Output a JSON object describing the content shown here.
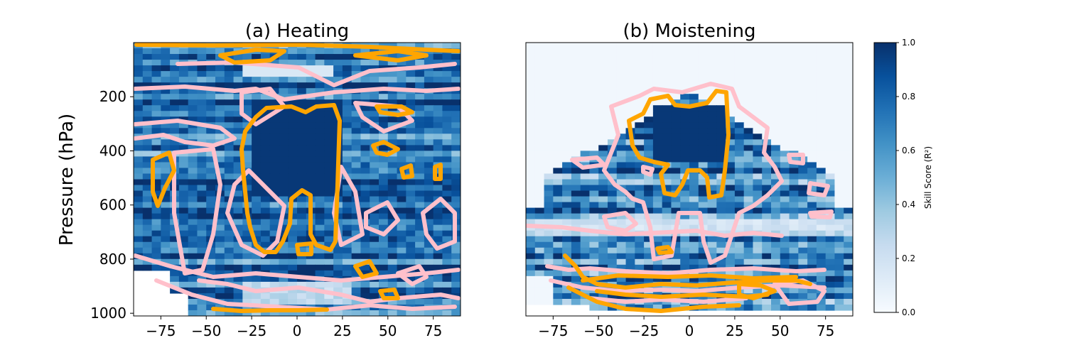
{
  "chart_data": [
    {
      "type": "heatmap",
      "title": "(a) Heating",
      "xlabel": "",
      "ylabel": "Pressure (hPa)",
      "xlim": [
        -90,
        90
      ],
      "ylim": [
        1010,
        0
      ],
      "xticks": [
        -75,
        -50,
        -25,
        0,
        25,
        50,
        75
      ],
      "yticks": [
        200,
        400,
        600,
        800,
        1000
      ],
      "colormap": "Blues",
      "contours": [
        {
          "color": "#ffa500",
          "level": "high skill (orange)"
        },
        {
          "color": "#ffc0cb",
          "level": "moderate skill (pink)"
        }
      ]
    },
    {
      "type": "heatmap",
      "title": "(b) Moistening",
      "xlabel": "",
      "ylabel": "",
      "xlim": [
        -90,
        90
      ],
      "ylim": [
        1010,
        0
      ],
      "xticks": [
        -75,
        -50,
        -25,
        0,
        25,
        50,
        75
      ],
      "yticks": [],
      "colormap": "Blues",
      "contours": [
        {
          "color": "#ffa500",
          "level": "high skill (orange)"
        },
        {
          "color": "#ffc0cb",
          "level": "moderate skill (pink)"
        }
      ]
    }
  ],
  "colorbar": {
    "label": "Skill Score (R²)",
    "ticks": [
      "0.0",
      "0.2",
      "0.4",
      "0.6",
      "0.8",
      "1.0"
    ],
    "range": [
      0,
      1
    ],
    "colors": [
      "#f7fbff",
      "#deebf7",
      "#c6dbef",
      "#9ecae1",
      "#6baed6",
      "#4292c6",
      "#2171b5",
      "#08519c",
      "#08306b"
    ]
  }
}
